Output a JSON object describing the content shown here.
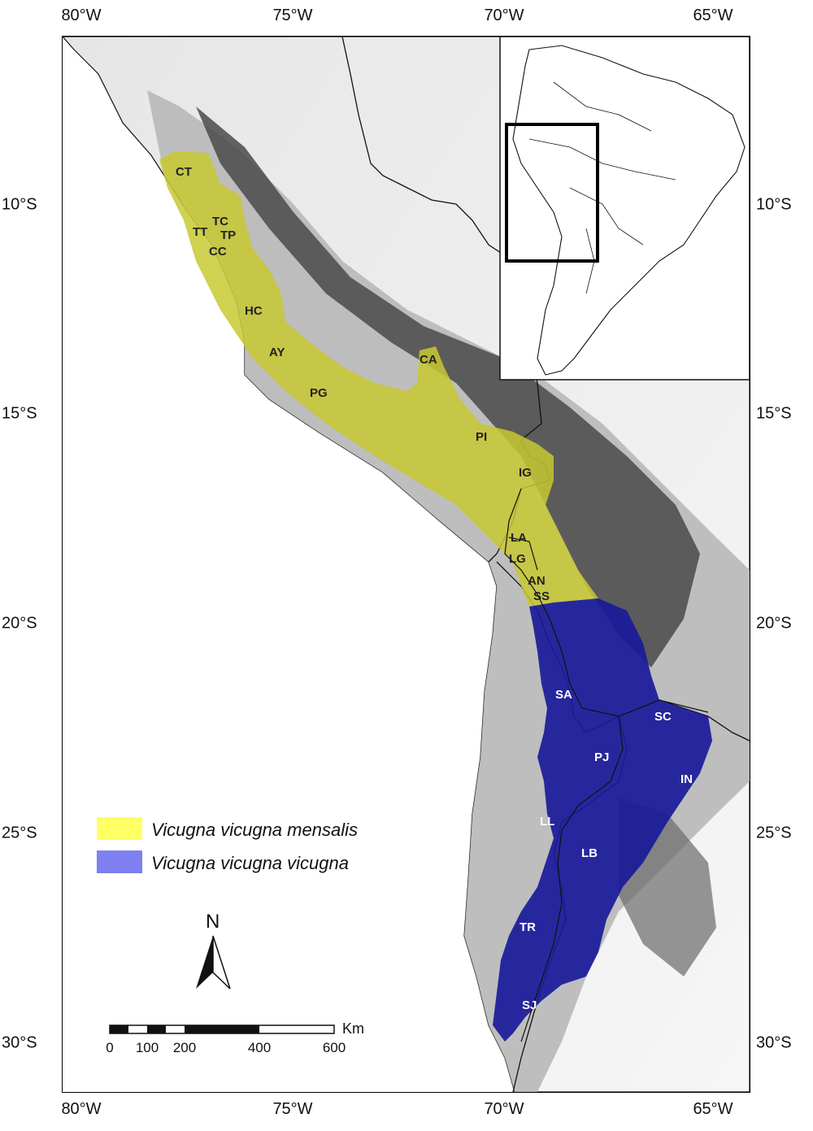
{
  "axes": {
    "top_longitudes": [
      "80°W",
      "75°W",
      "70°W",
      "65°W"
    ],
    "bottom_longitudes": [
      "80°W",
      "75°W",
      "70°W",
      "65°W"
    ],
    "left_latitudes": [
      "10°S",
      "15°S",
      "20°S",
      "25°S",
      "30°S"
    ],
    "right_latitudes": [
      "10°S",
      "15°S",
      "20°S",
      "25°S",
      "30°S"
    ]
  },
  "legend": {
    "items": [
      {
        "label": "Vicugna vicugna mensalis",
        "color": "#ffff66"
      },
      {
        "label": "Vicugna vicugna vicugna",
        "color": "#7f7ff2"
      }
    ]
  },
  "north_arrow": {
    "label": "N"
  },
  "scale_bar": {
    "unit": "Km",
    "ticks": [
      "0",
      "100",
      "200",
      "400",
      "600"
    ]
  },
  "sites_mensalis": [
    "CT",
    "TC",
    "TT",
    "TP",
    "CC",
    "HC",
    "AY",
    "CA",
    "PG",
    "PI",
    "IG",
    "LA",
    "LG",
    "AN",
    "SS"
  ],
  "sites_vicugna": [
    "SA",
    "SC",
    "PJ",
    "IN",
    "LL",
    "LB",
    "TR",
    "SJ"
  ],
  "colors": {
    "mensalis_fill": "#c8c832",
    "vicugna_fill": "#1a1a9a",
    "relief_dark": "#222222",
    "relief_light": "#f2f2f2"
  }
}
